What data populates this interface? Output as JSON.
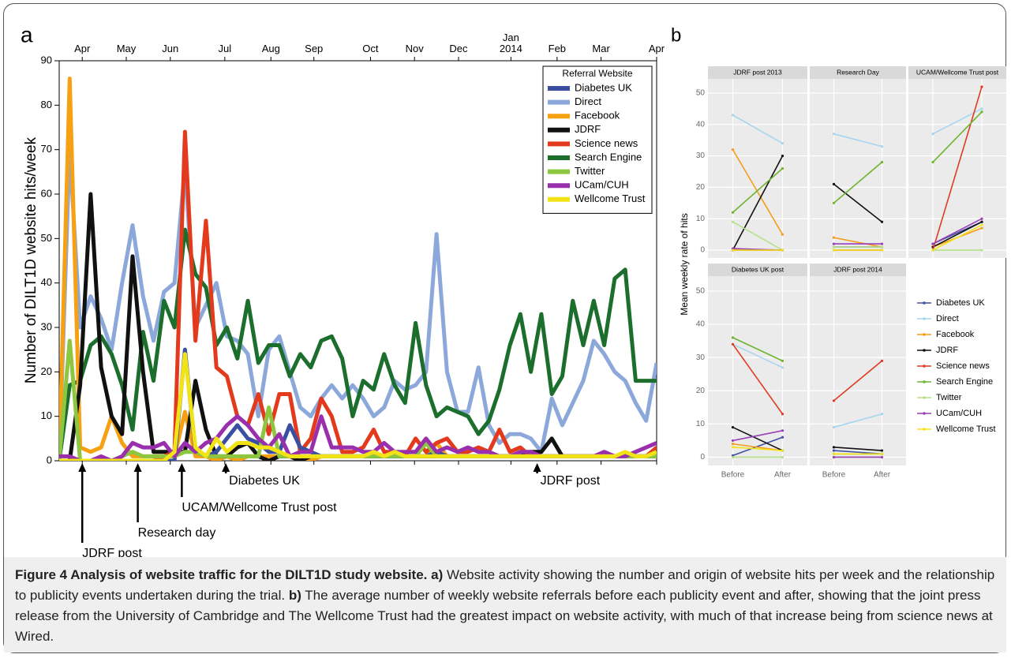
{
  "chart_data": [
    {
      "type": "line",
      "panel_label": "a",
      "ylabel": "Number of DILT1D website hits/week",
      "legend_title": "Referral Website",
      "x": [
        0,
        1,
        2,
        3,
        4,
        5,
        6,
        7,
        8,
        9,
        10,
        11,
        12,
        13,
        14,
        15,
        16,
        17,
        18,
        19,
        20,
        21,
        22,
        23,
        24,
        25,
        26,
        27,
        28,
        29,
        30,
        31,
        32,
        33,
        34,
        35,
        36,
        37,
        38,
        39,
        40,
        41,
        42,
        43,
        44,
        45,
        46,
        47,
        48,
        49,
        50,
        51,
        52,
        53,
        54,
        55,
        56,
        57
      ],
      "xlim": [
        0,
        57
      ],
      "xticks": [
        {
          "value": 2.2,
          "label": "Apr"
        },
        {
          "value": 6.4,
          "label": "May"
        },
        {
          "value": 10.6,
          "label": "Jun"
        },
        {
          "value": 15.8,
          "label": "Jul"
        },
        {
          "value": 20.2,
          "label": "Aug"
        },
        {
          "value": 24.3,
          "label": "Sep"
        },
        {
          "value": 29.7,
          "label": "Oct"
        },
        {
          "value": 33.9,
          "label": "Nov"
        },
        {
          "value": 38.1,
          "label": "Dec"
        },
        {
          "value": 43.1,
          "label": "Jan\n2014"
        },
        {
          "value": 47.5,
          "label": "Feb"
        },
        {
          "value": 51.7,
          "label": "Mar"
        },
        {
          "value": 57,
          "label": "Apr"
        }
      ],
      "ylim": [
        0,
        90
      ],
      "yticks": [
        0,
        10,
        20,
        30,
        40,
        50,
        60,
        70,
        80,
        90
      ],
      "series": [
        {
          "name": "Direct",
          "color": "#8ca7d9",
          "values": [
            0,
            70,
            30,
            37,
            32,
            25,
            40,
            53,
            37,
            27,
            38,
            40,
            66,
            30,
            35,
            40,
            28,
            27,
            24,
            10,
            25,
            28,
            20,
            12,
            10,
            14,
            17,
            14,
            17,
            14,
            10,
            12,
            18,
            16,
            17,
            20,
            51,
            20,
            11,
            11,
            21,
            8,
            4,
            6,
            6,
            5,
            2,
            14,
            8,
            13,
            18,
            27,
            24,
            20,
            18,
            13,
            9,
            22
          ]
        },
        {
          "name": "Search Engine",
          "color": "#1c6e2d",
          "values": [
            0,
            17,
            18,
            26,
            28,
            24,
            17,
            7,
            29,
            18,
            36,
            30,
            52,
            42,
            39,
            26,
            30,
            23,
            36,
            22,
            26,
            26,
            19,
            24,
            21,
            27,
            28,
            23,
            10,
            18,
            16,
            24,
            17,
            13,
            31,
            17,
            10,
            12,
            11,
            10,
            6,
            9,
            16,
            26,
            33,
            20,
            33,
            15,
            19,
            36,
            26,
            36,
            26,
            41,
            43,
            18,
            18,
            18
          ]
        },
        {
          "name": "Facebook",
          "color": "#f6a012",
          "values": [
            0,
            86,
            3,
            2,
            3,
            10,
            4,
            1,
            1,
            1,
            1,
            1,
            11,
            1,
            1,
            0,
            1,
            0,
            1,
            1,
            1,
            1,
            1,
            1,
            0,
            1,
            1,
            1,
            1,
            1,
            1,
            1,
            1,
            1,
            1,
            1,
            4,
            1,
            1,
            1,
            1,
            1,
            1,
            1,
            1,
            1,
            1,
            1,
            1,
            1,
            1,
            1,
            1,
            1,
            1,
            1,
            1,
            1
          ]
        },
        {
          "name": "JDRF",
          "color": "#111111",
          "values": [
            0,
            0,
            17,
            60,
            21,
            10,
            6,
            46,
            20,
            2,
            2,
            2,
            2,
            18,
            7,
            1,
            1,
            3,
            4,
            1,
            0,
            1,
            1,
            0,
            1,
            1,
            1,
            1,
            1,
            1,
            1,
            1,
            1,
            1,
            1,
            1,
            1,
            1,
            1,
            1,
            1,
            1,
            1,
            1,
            1,
            2,
            2,
            5,
            1,
            1,
            1,
            1,
            1,
            1,
            1,
            1,
            1,
            1
          ]
        },
        {
          "name": "Science news",
          "color": "#e3391d",
          "values": [
            0,
            0,
            0,
            0,
            0,
            0,
            0,
            0,
            0,
            0,
            1,
            2,
            74,
            27,
            54,
            21,
            19,
            10,
            8,
            15,
            6,
            15,
            15,
            2,
            5,
            14,
            10,
            2,
            2,
            3,
            7,
            2,
            2,
            1,
            5,
            2,
            4,
            5,
            2,
            2,
            3,
            2,
            7,
            2,
            3,
            1,
            1,
            1,
            1,
            1,
            1,
            1,
            1,
            1,
            1,
            1,
            1,
            3
          ]
        },
        {
          "name": "Diabetes UK",
          "color": "#3a4fa2",
          "values": [
            0,
            0,
            0,
            0,
            0,
            0,
            0,
            0,
            0,
            0,
            0,
            0,
            25,
            2,
            1,
            2,
            5,
            8,
            5,
            4,
            2,
            2,
            8,
            3,
            2,
            1,
            1,
            1,
            1,
            1,
            1,
            1,
            1,
            1,
            1,
            1,
            2,
            1,
            1,
            1,
            1,
            1,
            1,
            1,
            1,
            1,
            1,
            1,
            1,
            1,
            1,
            1,
            1,
            1,
            1,
            1,
            1,
            1
          ]
        },
        {
          "name": "Twitter",
          "color": "#8dc63f",
          "values": [
            0,
            27,
            0,
            0,
            0,
            0,
            1,
            2,
            1,
            1,
            1,
            1,
            2,
            2,
            1,
            1,
            1,
            1,
            1,
            1,
            12,
            1,
            1,
            1,
            1,
            1,
            1,
            1,
            1,
            1,
            1,
            1,
            1,
            1,
            1,
            4,
            1,
            1,
            1,
            1,
            1,
            1,
            1,
            1,
            1,
            1,
            1,
            1,
            1,
            1,
            1,
            1,
            1,
            1,
            1,
            1,
            1,
            1
          ]
        },
        {
          "name": "UCam/CUH",
          "color": "#9a2fae",
          "values": [
            1,
            1,
            0,
            0,
            1,
            0,
            1,
            4,
            3,
            3,
            4,
            1,
            4,
            2,
            4,
            5,
            8,
            10,
            8,
            5,
            3,
            6,
            1,
            2,
            2,
            10,
            3,
            3,
            3,
            2,
            2,
            4,
            2,
            2,
            2,
            5,
            2,
            3,
            2,
            3,
            2,
            2,
            1,
            1,
            2,
            2,
            1,
            1,
            1,
            1,
            1,
            1,
            2,
            1,
            1,
            2,
            3,
            4
          ]
        },
        {
          "name": "Wellcome Trust",
          "color": "#f2e316",
          "values": [
            0,
            0,
            0,
            0,
            0,
            0,
            0,
            0,
            0,
            0,
            0,
            2,
            24,
            3,
            1,
            5,
            2,
            4,
            4,
            3,
            3,
            2,
            1,
            1,
            1,
            1,
            1,
            1,
            1,
            1,
            2,
            1,
            2,
            1,
            1,
            1,
            1,
            1,
            1,
            1,
            1,
            1,
            1,
            1,
            1,
            1,
            1,
            1,
            1,
            1,
            1,
            1,
            1,
            1,
            2,
            1,
            1,
            2
          ]
        }
      ],
      "legend_order": [
        "Diabetes UK",
        "Direct",
        "Facebook",
        "JDRF",
        "Science news",
        "Search Engine",
        "Twitter",
        "UCam/CUH",
        "Wellcome Trust"
      ],
      "annotations": [
        {
          "text": "JDRF post",
          "x": 2.2
        },
        {
          "text": "Research day",
          "x": 7.5
        },
        {
          "text": "UCAM/Wellcome Trust post",
          "x": 11.7
        },
        {
          "text": "Diabetes UK",
          "x": 15.9
        },
        {
          "text": "JDRF post",
          "x": 45.6
        }
      ]
    },
    {
      "type": "facet-line",
      "panel_label": "b",
      "ylabel": "Mean weekly rate of hits",
      "categories": [
        "Before",
        "After"
      ],
      "facets": [
        "JDRF post 2013",
        "Research Day",
        "UCAM/Wellcome Trust post",
        "Diabetes UK post",
        "JDRF post 2014"
      ],
      "ylim": [
        -2.5,
        54.5
      ],
      "yticks": [
        0,
        10,
        20,
        30,
        40,
        50
      ],
      "series": [
        {
          "name": "Diabetes UK",
          "color": "#3f51a3",
          "values": [
            [
              0,
              0
            ],
            [
              1,
              1
            ],
            [
              2,
              9
            ],
            [
              0.5,
              6
            ],
            [
              2,
              1
            ]
          ]
        },
        {
          "name": "Direct",
          "color": "#a6d5ef",
          "values": [
            [
              43,
              34
            ],
            [
              37,
              33
            ],
            [
              37,
              45
            ],
            [
              34,
              27
            ],
            [
              9,
              13
            ]
          ]
        },
        {
          "name": "Facebook",
          "color": "#f59c1a",
          "values": [
            [
              32,
              5
            ],
            [
              4,
              1
            ],
            [
              1,
              7
            ],
            [
              4,
              2
            ],
            [
              1,
              1
            ]
          ]
        },
        {
          "name": "JDRF",
          "color": "#111111",
          "values": [
            [
              0,
              30
            ],
            [
              21,
              9
            ],
            [
              1,
              9
            ],
            [
              9,
              2
            ],
            [
              3,
              2
            ]
          ]
        },
        {
          "name": "Science news",
          "color": "#e03a23",
          "values": [
            [
              0,
              0
            ],
            [
              0,
              0
            ],
            [
              0,
              52
            ],
            [
              34,
              13
            ],
            [
              17,
              29
            ]
          ]
        },
        {
          "name": "Search Engine",
          "color": "#6cb52d",
          "values": [
            [
              12,
              26
            ],
            [
              15,
              28
            ],
            [
              28,
              44
            ],
            [
              36,
              29
            ],
            [
              1,
              1
            ]
          ]
        },
        {
          "name": "Twitter",
          "color": "#b7e08a",
          "values": [
            [
              9,
              0
            ],
            [
              1,
              1
            ],
            [
              0,
              0
            ],
            [
              0,
              0
            ],
            [
              0,
              0
            ]
          ]
        },
        {
          "name": "UCam/CUH",
          "color": "#9a3fb8",
          "values": [
            [
              0.5,
              0
            ],
            [
              2,
              2
            ],
            [
              2,
              10
            ],
            [
              5,
              8
            ],
            [
              0,
              0
            ]
          ]
        },
        {
          "name": "Wellcome Trust",
          "color": "#f3e21c",
          "values": [
            [
              0,
              0
            ],
            [
              0,
              0
            ],
            [
              0,
              8
            ],
            [
              3,
              2
            ],
            [
              1,
              1
            ]
          ]
        }
      ]
    }
  ],
  "caption": {
    "title": "Figure 4 Analysis of website traffic for the DILT1D study website.",
    "parts": [
      {
        "label": "a)",
        "text": "Website activity showing the number and origin of website hits per week and the relationship to publicity events undertaken during the trial."
      },
      {
        "label": "b)",
        "text": "The average number of weekly website referrals before each publicity event and after, showing that the joint press release from the University of Cambridge and The Wellcome Trust had the greatest impact on website activity, with much of that increase being from science news at Wired."
      }
    ]
  }
}
